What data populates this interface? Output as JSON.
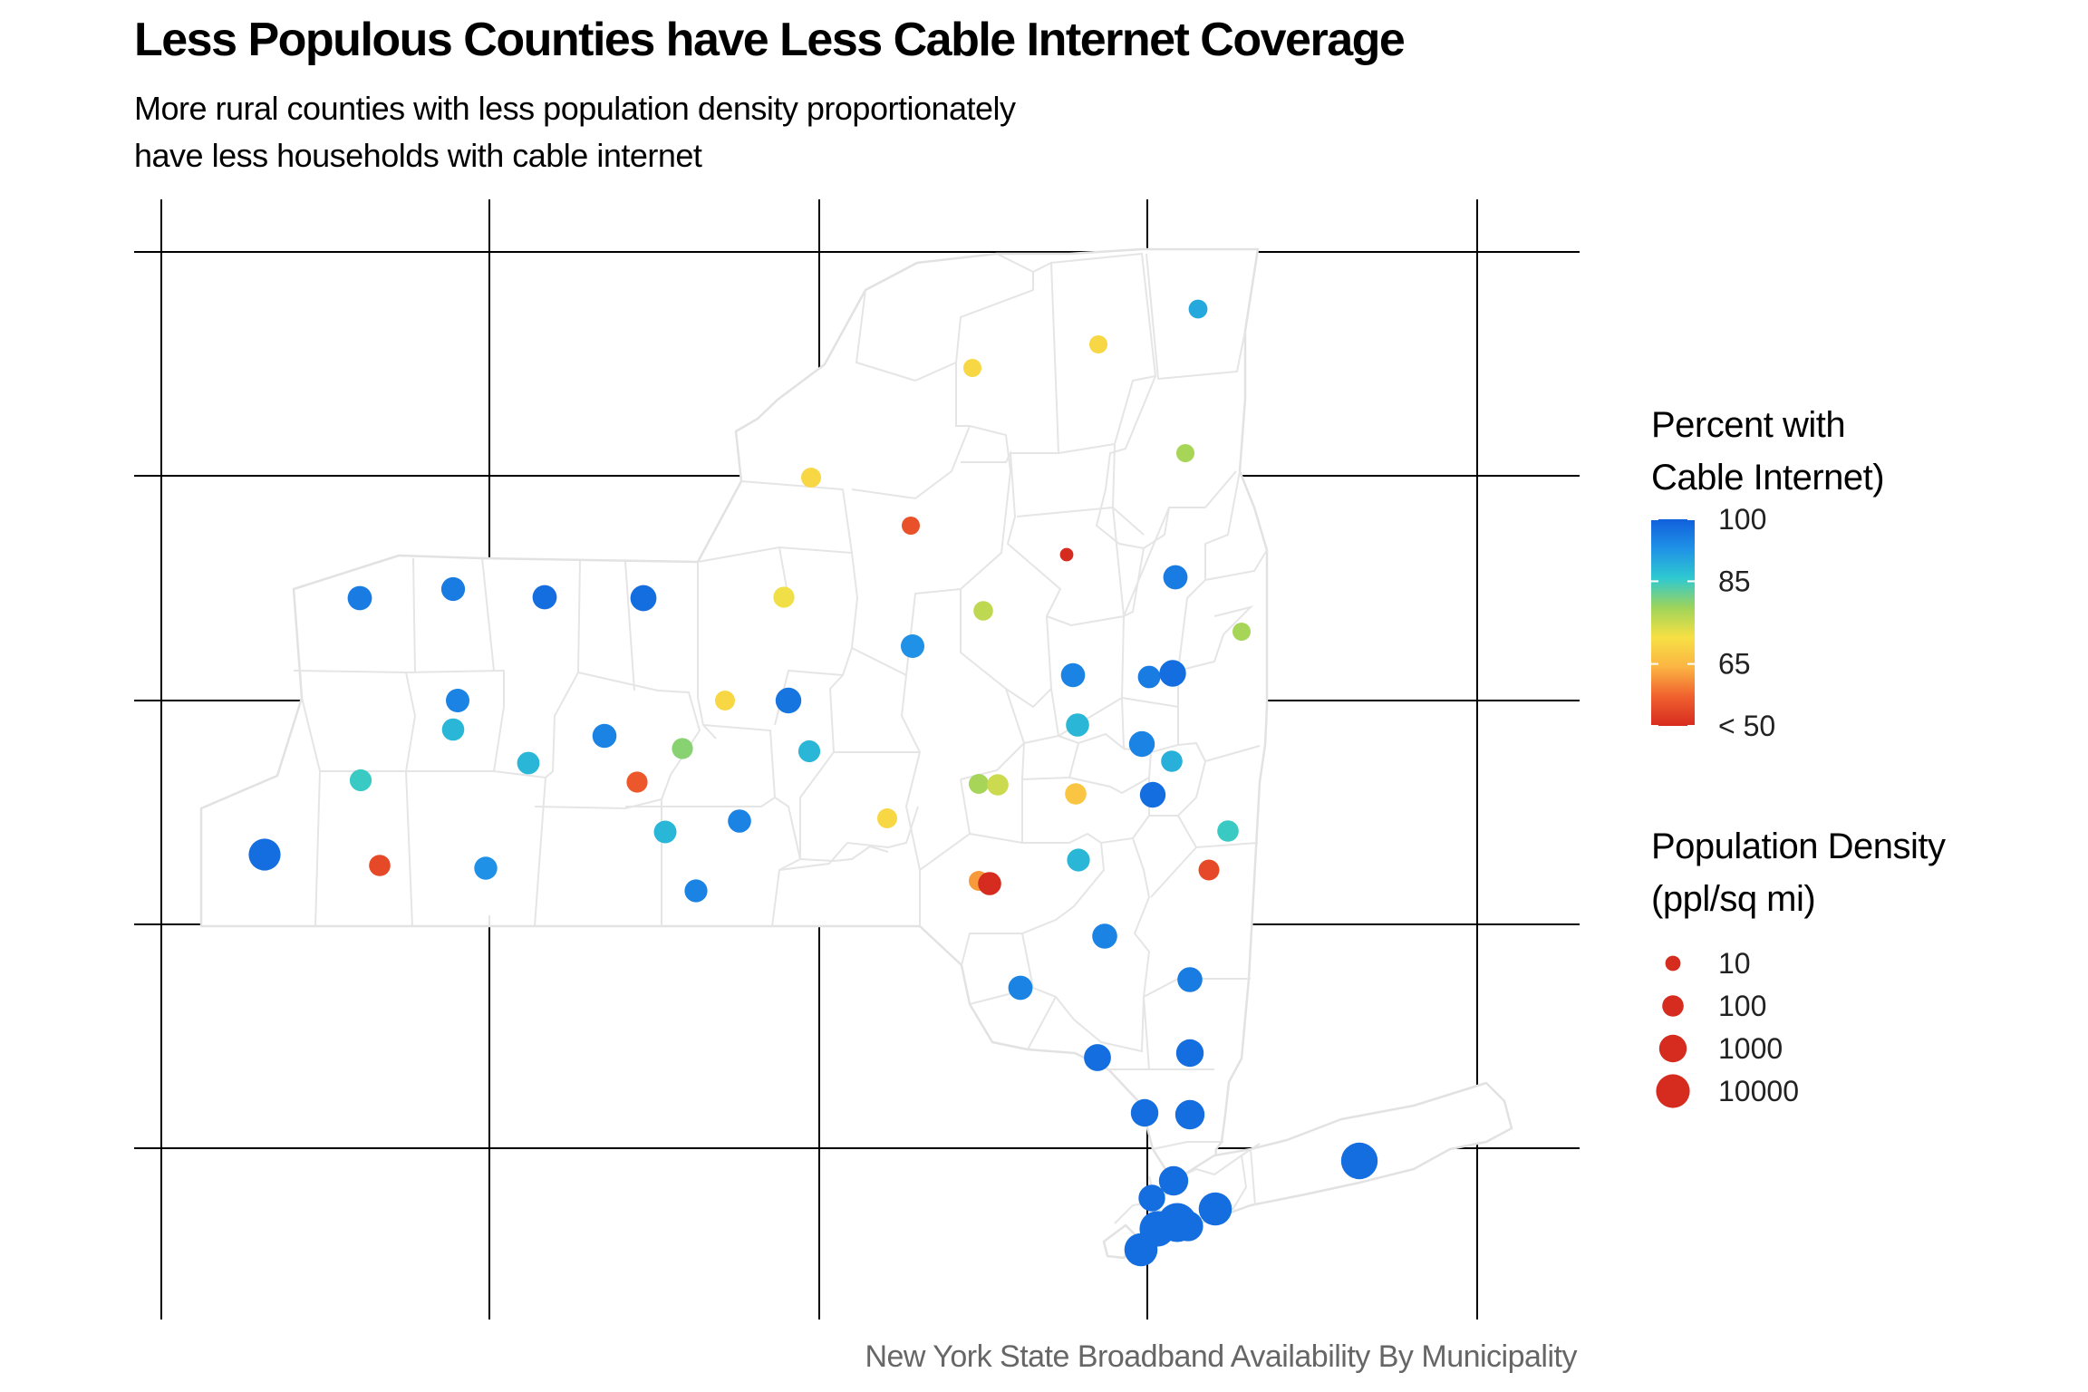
{
  "title": "Less Populous Counties have Less Cable Internet Coverage",
  "subtitle_lines": [
    "More rural counties with less population density proportionately",
    "have less households with cable internet"
  ],
  "caption": "New York State Broadband Availability By Municipality",
  "legend_color": {
    "title_lines": [
      "Percent with",
      "Cable Internet)"
    ],
    "labels": [
      "100",
      "85",
      "65",
      "< 50"
    ],
    "label_values": [
      100,
      85,
      65,
      50
    ],
    "range": [
      50,
      100
    ],
    "gradient_colors": [
      "#d62b1f",
      "#f0612e",
      "#fbb543",
      "#f7e044",
      "#9fd45a",
      "#2fc9d0",
      "#1f92e6",
      "#1160dc"
    ]
  },
  "legend_size": {
    "title_lines": [
      "Population Density",
      "(ppl/sq mi)"
    ],
    "labels": [
      "10",
      "100",
      "1000",
      "10000"
    ],
    "values": [
      10,
      100,
      1000,
      10000
    ],
    "color": "#d62b1f"
  },
  "map_style": {
    "fill": "#ffffff",
    "county_border": "#e2e2e2",
    "grid_line": "#000000",
    "projection_grid": "lon/lat graticule, no tick labels"
  },
  "chart_data": {
    "type": "scatter",
    "description_units": "points per county: color = percent cable internet, size = population density",
    "points": [
      {
        "pct": 90,
        "density": 40
      },
      {
        "pct": 70,
        "density": 30
      },
      {
        "pct": 70,
        "density": 30
      },
      {
        "pct": 78,
        "density": 30
      },
      {
        "pct": 78,
        "density": 30
      },
      {
        "pct": 55,
        "density": 30
      },
      {
        "pct": 45,
        "density": 5
      },
      {
        "pct": 96,
        "density": 300
      },
      {
        "pct": 96,
        "density": 150
      },
      {
        "pct": 98,
        "density": 700
      },
      {
        "pct": 95,
        "density": 270
      },
      {
        "pct": 88,
        "density": 200
      },
      {
        "pct": 89,
        "density": 100
      },
      {
        "pct": 76,
        "density": 50
      },
      {
        "pct": 93,
        "density": 230
      },
      {
        "pct": 70,
        "density": 60
      },
      {
        "pct": 96,
        "density": 300
      },
      {
        "pct": 96,
        "density": 240
      },
      {
        "pct": 98,
        "density": 300
      },
      {
        "pct": 98,
        "density": 600
      },
      {
        "pct": 72,
        "density": 90
      },
      {
        "pct": 85,
        "density": 120
      },
      {
        "pct": 88,
        "density": 140
      },
      {
        "pct": 95,
        "density": 220
      },
      {
        "pct": 88,
        "density": 150
      },
      {
        "pct": 95,
        "density": 280
      },
      {
        "pct": 80,
        "density": 90
      },
      {
        "pct": 88,
        "density": 170
      },
      {
        "pct": 95,
        "density": 500
      },
      {
        "pct": 98,
        "density": 500
      },
      {
        "pct": 78,
        "density": 60
      },
      {
        "pct": 75,
        "density": 100
      },
      {
        "pct": 67,
        "density": 100
      },
      {
        "pct": 85,
        "density": 100
      },
      {
        "pct": 70,
        "density": 60
      },
      {
        "pct": 56,
        "density": 90
      },
      {
        "pct": 97,
        "density": 500
      },
      {
        "pct": 88,
        "density": 120
      },
      {
        "pct": 70,
        "density": 60
      },
      {
        "pct": 95,
        "density": 200
      },
      {
        "pct": 88,
        "density": 160
      },
      {
        "pct": 95,
        "density": 170
      },
      {
        "pct": 62,
        "density": 60
      },
      {
        "pct": 54,
        "density": 80
      },
      {
        "pct": 95,
        "density": 400
      },
      {
        "pct": 96,
        "density": 400
      },
      {
        "pct": 54,
        "density": 100
      },
      {
        "pct": 93,
        "density": 180
      },
      {
        "pct": 50,
        "density": 200
      },
      {
        "pct": 95,
        "density": 300
      },
      {
        "pct": 98,
        "density": 800
      },
      {
        "pct": 98,
        "density": 1000
      },
      {
        "pct": 98,
        "density": 1000
      },
      {
        "pct": 98,
        "density": 2000
      },
      {
        "pct": 98,
        "density": 2000
      },
      {
        "pct": 98,
        "density": 2500
      },
      {
        "pct": 98,
        "density": 700
      },
      {
        "pct": 98,
        "density": 8000
      },
      {
        "pct": 98,
        "density": 8000
      },
      {
        "pct": 98,
        "density": 20000
      },
      {
        "pct": 98,
        "density": 70000
      },
      {
        "pct": 98,
        "density": 30000
      },
      {
        "pct": 98,
        "density": 5000
      }
    ]
  }
}
